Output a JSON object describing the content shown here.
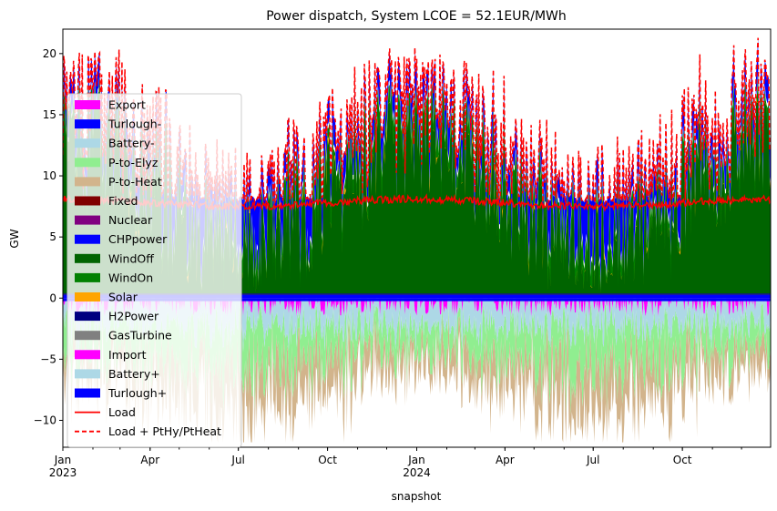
{
  "chart_data": {
    "type": "area",
    "title": "Power dispatch, System LCOE = 52.1EUR/MWh",
    "xlabel": "snapshot",
    "ylabel": "GW",
    "x_range": [
      "2023-01-01",
      "2024-12-31"
    ],
    "ylim": [
      -12.2,
      22
    ],
    "grid": false,
    "legend_position": "left",
    "y_ticks": [
      -10,
      -5,
      0,
      5,
      10,
      15,
      20
    ],
    "x_ticks": [
      {
        "date": "2023-01-01",
        "label": "Jan",
        "sub": "2023"
      },
      {
        "date": "2023-04-01",
        "label": "Apr",
        "sub": ""
      },
      {
        "date": "2023-07-01",
        "label": "Jul",
        "sub": ""
      },
      {
        "date": "2023-10-01",
        "label": "Oct",
        "sub": ""
      },
      {
        "date": "2024-01-01",
        "label": "Jan",
        "sub": "2024"
      },
      {
        "date": "2024-04-01",
        "label": "Apr",
        "sub": ""
      },
      {
        "date": "2024-07-01",
        "label": "Jul",
        "sub": ""
      },
      {
        "date": "2024-10-01",
        "label": "Oct",
        "sub": ""
      }
    ],
    "legend": [
      {
        "name": "Export",
        "color": "#ff00ff",
        "kind": "patch"
      },
      {
        "name": "Turlough-",
        "color": "#0000ff",
        "kind": "patch"
      },
      {
        "name": "Battery-",
        "color": "#add8e6",
        "kind": "patch"
      },
      {
        "name": "P-to-Elyz",
        "color": "#90ee90",
        "kind": "patch"
      },
      {
        "name": "P-to-Heat",
        "color": "#d2b48c",
        "kind": "patch"
      },
      {
        "name": "Fixed",
        "color": "#800000",
        "kind": "patch"
      },
      {
        "name": "Nuclear",
        "color": "#800080",
        "kind": "patch"
      },
      {
        "name": "CHPpower",
        "color": "#0000ff",
        "kind": "patch"
      },
      {
        "name": "WindOff",
        "color": "#006400",
        "kind": "patch"
      },
      {
        "name": "WindOn",
        "color": "#008000",
        "kind": "patch"
      },
      {
        "name": "Solar",
        "color": "#ffa500",
        "kind": "patch"
      },
      {
        "name": "H2Power",
        "color": "#000080",
        "kind": "patch"
      },
      {
        "name": "GasTurbine",
        "color": "#808080",
        "kind": "patch"
      },
      {
        "name": "Import",
        "color": "#ff00ff",
        "kind": "patch"
      },
      {
        "name": "Battery+",
        "color": "#add8e6",
        "kind": "patch"
      },
      {
        "name": "Turlough+",
        "color": "#0000ff",
        "kind": "patch"
      },
      {
        "name": "Load",
        "color": "#ff0000",
        "kind": "line"
      },
      {
        "name": "Load + PtHy/PtHeat",
        "color": "#ff0000",
        "kind": "dashed"
      }
    ],
    "series": [
      {
        "name": "Load",
        "approx_level_GW": 8.0,
        "range_GW": [
          7.5,
          9.1
        ]
      },
      {
        "name": "Load + PtHy/PtHeat",
        "approx_range_GW": [
          8,
          21
        ]
      },
      {
        "name": "WindOff",
        "approx_range_GW": [
          0,
          16
        ]
      },
      {
        "name": "WindOn",
        "approx_range_GW": [
          0,
          17
        ]
      },
      {
        "name": "P-to-Heat",
        "approx_range_GW": [
          -12,
          0
        ]
      },
      {
        "name": "P-to-Elyz",
        "approx_range_GW": [
          -8.5,
          0
        ]
      },
      {
        "name": "Battery-",
        "approx_range_GW": [
          -4,
          0
        ]
      },
      {
        "name": "Export",
        "approx_range_GW": [
          -1.8,
          0
        ]
      }
    ]
  }
}
